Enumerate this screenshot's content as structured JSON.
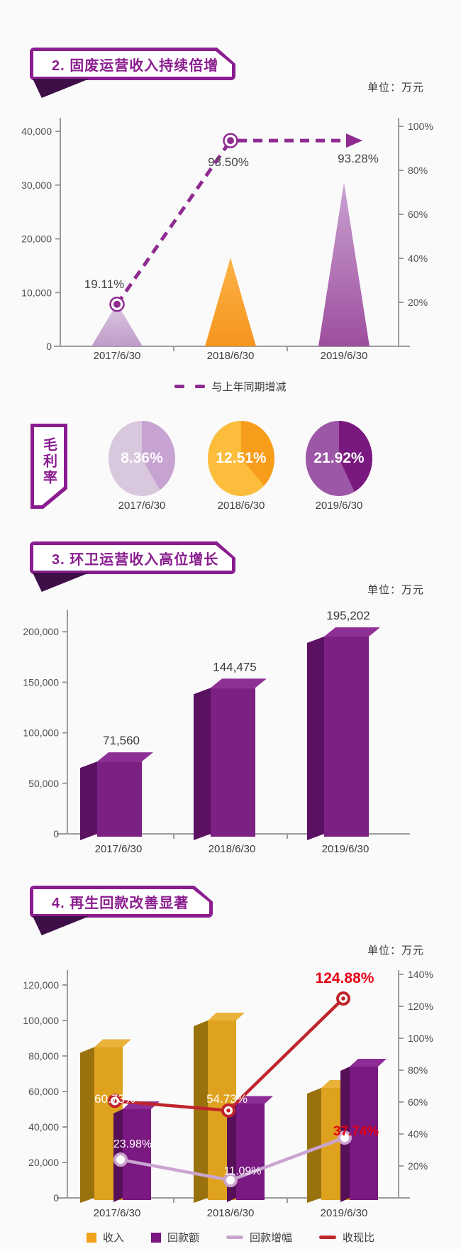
{
  "page": {
    "background": "#FBFAFB",
    "accent_purple": "#8A1D8F",
    "fold_purple": "#3E0F47",
    "alert_red": "#E60013"
  },
  "sections": {
    "s2": {
      "title": "2. 固废运营收入持续倍增",
      "unit": "单位：万元",
      "legend": [
        {
          "label": "与上年同期增减",
          "style": "dash",
          "color": "#8E2B91"
        }
      ]
    },
    "margin": {
      "label": "毛利率"
    },
    "s3": {
      "title": "3. 环卫运营收入高位增长",
      "unit": "单位：万元"
    },
    "s4": {
      "title": "4. 再生回款改善显著",
      "unit": "单位：万元",
      "legend": [
        {
          "label": "收入",
          "style": "square",
          "color": "#F0A11E"
        },
        {
          "label": "回款额",
          "style": "square",
          "color": "#7A1582"
        },
        {
          "label": "回款增幅",
          "style": "line",
          "color": "#C9A5CF"
        },
        {
          "label": "收现比",
          "style": "line",
          "color": "#C0252B"
        }
      ]
    }
  },
  "chart_data": [
    {
      "id": "solid-waste-revenue",
      "type": "area",
      "title": "2. 固废运营收入持续倍增",
      "unit": "万元",
      "categories": [
        "2017/6/30",
        "2018/6/30",
        "2019/6/30"
      ],
      "series": [
        {
          "name": "收入峰形",
          "type": "triangle",
          "axis": "left",
          "values": [
            8000,
            16500,
            30500
          ]
        },
        {
          "name": "与上年同期增减",
          "type": "dashed-line",
          "axis": "right",
          "values": [
            19.11,
            93.5,
            93.28
          ],
          "labels": [
            "19.11%",
            "93.50%",
            "93.28%"
          ]
        }
      ],
      "left_axis": {
        "max": 40000,
        "label_values": [
          40000,
          30000,
          20000,
          10000,
          0
        ],
        "labels": [
          "40,000",
          "30,000",
          "20,000",
          "10,000",
          "0"
        ]
      },
      "right_axis": {
        "max": 100,
        "label_values": [
          100,
          80,
          60,
          40,
          20
        ],
        "labels": [
          "100%",
          "80%",
          "60%",
          "40%",
          "20%"
        ]
      },
      "legend_position": "bottom",
      "grid": false
    },
    {
      "id": "gross-margin",
      "type": "pie",
      "row_label": "毛利率",
      "items": [
        {
          "date": "2017/6/30",
          "value": 8.36,
          "label": "8.36%",
          "base_color": "#D8C7DD",
          "wedge_color": "#C6A3D0",
          "wedge_deg": 150
        },
        {
          "date": "2018/6/30",
          "value": 12.51,
          "label": "12.51%",
          "base_color": "#FBBD3B",
          "wedge_color": "#F89D1B",
          "wedge_deg": 140
        },
        {
          "date": "2019/6/30",
          "value": 21.92,
          "label": "21.92%",
          "base_color": "#9C57A6",
          "wedge_color": "#79187F",
          "wedge_deg": 155
        }
      ]
    },
    {
      "id": "sanitation-revenue",
      "type": "bar3d",
      "title": "3. 环卫运营收入高位增长",
      "unit": "万元",
      "categories": [
        "2017/6/30",
        "2018/6/30",
        "2019/6/30"
      ],
      "values": [
        71560,
        144475,
        195202
      ],
      "value_labels": [
        "71,560",
        "144,475",
        "195,202"
      ],
      "left_axis": {
        "max": 200000,
        "label_values": [
          200000,
          150000,
          100000,
          50000,
          0
        ],
        "labels": [
          "200,000",
          "150,000",
          "100,000",
          "50,000",
          "0"
        ]
      },
      "grid": false
    },
    {
      "id": "recycling-collection",
      "type": "combo",
      "title": "4. 再生回款改善显著",
      "unit": "万元",
      "categories": [
        "2017/6/30",
        "2018/6/30",
        "2019/6/30"
      ],
      "series": [
        {
          "name": "收入",
          "type": "bar",
          "axis": "left",
          "values": [
            85000,
            100000,
            62000
          ]
        },
        {
          "name": "回款额",
          "type": "bar",
          "axis": "left",
          "values": [
            50000,
            53000,
            74000
          ]
        },
        {
          "name": "回款增幅",
          "type": "line",
          "axis": "right",
          "values": [
            23.98,
            11.09,
            37.74
          ],
          "labels": [
            "23.98%",
            "11.09%",
            "37.74%"
          ]
        },
        {
          "name": "收现比",
          "type": "line",
          "axis": "right",
          "values": [
            60.73,
            54.73,
            124.88
          ],
          "labels": [
            "60.73%",
            "54.73%",
            "124.88%"
          ]
        }
      ],
      "left_axis": {
        "max": 120000,
        "label_values": [
          120000,
          100000,
          80000,
          60000,
          40000,
          20000,
          0
        ],
        "labels": [
          "120,000",
          "100,000",
          "80,000",
          "60,000",
          "40,000",
          "20,000",
          "0"
        ]
      },
      "right_axis": {
        "max": 140,
        "label_values": [
          140,
          120,
          100,
          80,
          60,
          40,
          20
        ],
        "labels": [
          "140%",
          "120%",
          "100%",
          "80%",
          "60%",
          "40%",
          "20%"
        ]
      },
      "legend_position": "bottom",
      "grid": false
    }
  ]
}
